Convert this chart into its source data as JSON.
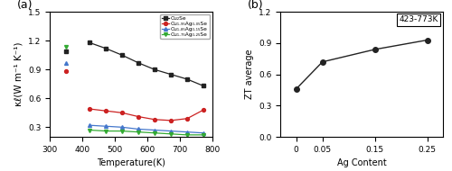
{
  "panel_a": {
    "title": "(a)",
    "xlabel": "Temperature(K)",
    "ylabel": "κℓ(W m⁻¹ K⁻¹)",
    "xlim": [
      300,
      800
    ],
    "ylim": [
      0.2,
      1.5
    ],
    "yticks": [
      0.3,
      0.6,
      0.9,
      1.2,
      1.5
    ],
    "xticks": [
      300,
      400,
      500,
      600,
      700,
      800
    ],
    "series": [
      {
        "label": "Cu₂Se",
        "color": "#222222",
        "marker": "s",
        "x_isolated": [
          350
        ],
        "y_isolated": [
          1.09
        ],
        "x": [
          423,
          473,
          523,
          573,
          623,
          673,
          723,
          773
        ],
        "y": [
          1.18,
          1.12,
          1.05,
          0.97,
          0.9,
          0.85,
          0.8,
          0.73
        ]
      },
      {
        "label": "Cu₁.₉₅Ag₀.₀₅Se",
        "color": "#cc2222",
        "marker": "o",
        "x_isolated": [
          350
        ],
        "y_isolated": [
          0.88
        ],
        "x": [
          423,
          473,
          523,
          573,
          623,
          673,
          723,
          773
        ],
        "y": [
          0.49,
          0.47,
          0.45,
          0.41,
          0.38,
          0.37,
          0.39,
          0.48
        ]
      },
      {
        "label": "Cu₁.₈₅Ag₀.₁₅Se",
        "color": "#4477cc",
        "marker": "^",
        "x_isolated": [
          350
        ],
        "y_isolated": [
          0.97
        ],
        "x": [
          423,
          473,
          523,
          573,
          623,
          673,
          723,
          773
        ],
        "y": [
          0.32,
          0.31,
          0.3,
          0.28,
          0.27,
          0.26,
          0.25,
          0.24
        ]
      },
      {
        "label": "Cu₁.₇₅Ag₀.₂₅Se",
        "color": "#33aa33",
        "marker": "v",
        "x_isolated": [
          350
        ],
        "y_isolated": [
          1.14
        ],
        "x": [
          423,
          473,
          523,
          573,
          623,
          673,
          723,
          773
        ],
        "y": [
          0.27,
          0.26,
          0.26,
          0.25,
          0.24,
          0.23,
          0.22,
          0.22
        ]
      }
    ]
  },
  "panel_b": {
    "title": "(b)",
    "annotation": "423-773K",
    "xlabel": "Ag Content",
    "ylabel": "ZT average",
    "xlim": [
      -0.03,
      0.28
    ],
    "ylim": [
      0.0,
      1.2
    ],
    "yticks": [
      0.0,
      0.3,
      0.6,
      0.9,
      1.2
    ],
    "xticks": [
      0,
      0.05,
      0.15,
      0.25
    ],
    "xtick_labels": [
      "0",
      "0.05",
      "0.15",
      "0.25"
    ],
    "x": [
      0,
      0.05,
      0.15,
      0.25
    ],
    "y": [
      0.46,
      0.72,
      0.84,
      0.93
    ],
    "color": "#222222",
    "marker": "o",
    "markersize": 4
  }
}
